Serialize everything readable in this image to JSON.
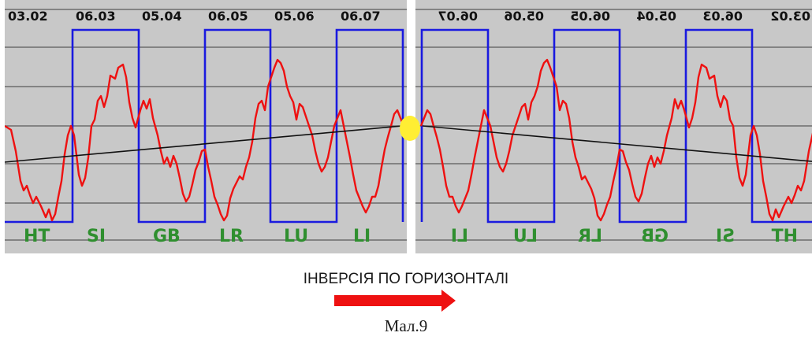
{
  "left_panel": {
    "top_labels": [
      "03.02",
      "06.03",
      "05.04",
      "06.05",
      "05.06",
      "06.07"
    ],
    "bottom_labels": [
      "HT",
      "SI",
      "GB",
      "LR",
      "LU",
      "LI"
    ]
  },
  "right_panel": {
    "top_labels": [
      "06.07",
      "05.06",
      "06.05",
      "05.04",
      "06.03",
      "03.02"
    ],
    "bottom_labels": [
      "LI",
      "LU",
      "LR",
      "GB",
      "SI",
      "HT"
    ],
    "mirrored": true
  },
  "colors": {
    "background": "#c8c8c8",
    "grid": "#5a5a5a",
    "square_wave": "#1a1adf",
    "signal": "#ee1111",
    "trend": "#111111",
    "marker": "#ffee33",
    "label_text": "#2f8f2f",
    "arrow": "#ee1111"
  },
  "caption": "ІНВЕРСІЯ ПО ГОРИЗОНТАЛІ",
  "figure_label": "Мал.9"
}
